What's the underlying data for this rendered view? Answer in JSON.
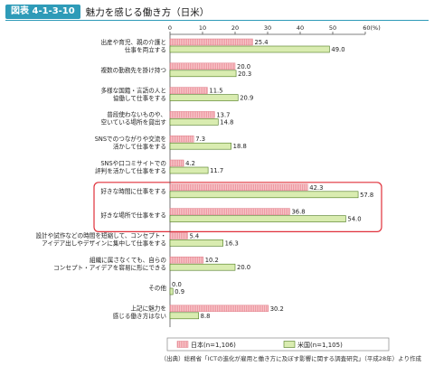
{
  "figure": {
    "number": "図表 4-1-3-10",
    "title": "魅力を感じる働き方（日米）"
  },
  "source_note": "（出典）総務省「ICTの進化が雇用と働き方に及ぼす影響に関する調査研究」（平成28年）より作成",
  "colors": {
    "japan": "#f7c5c8",
    "japan_stroke": "#e07a86",
    "us": "#d9ecb0",
    "us_stroke": "#4d7a1e",
    "highlight": "#e0303a"
  },
  "chart_data": {
    "type": "bar",
    "orientation": "horizontal",
    "unit_label": "(%)",
    "xlim": [
      0,
      60
    ],
    "xticks": [
      0,
      10,
      20,
      30,
      40,
      50,
      60
    ],
    "xtick_labels": [
      "0",
      "10",
      "20",
      "30",
      "40",
      "50",
      "60(%)"
    ],
    "categories": [
      [
        "出産や育児、親の介護と",
        "仕事を両立する"
      ],
      [
        "複数の勤務先を掛け持つ"
      ],
      [
        "多様な国籍・言語の人と",
        "協働して仕事をする"
      ],
      [
        "普段使わないものや、",
        "空いている場所を貸出す"
      ],
      [
        "SNSでのつながりや交流を",
        "活かして仕事をする"
      ],
      [
        "SNSや口コミサイトでの",
        "評判を活かして仕事をする"
      ],
      [
        "好きな時間に仕事をする"
      ],
      [
        "好きな場所で仕事をする"
      ],
      [
        "設計や試作などの時間を短縮して、コンセプト・",
        "アイデア出しやデザインに集中して仕事をする"
      ],
      [
        "組織に属さなくても、自らの",
        "コンセプト・アイデアを容易に形にできる"
      ],
      [
        "その他"
      ],
      [
        "上記に魅力を",
        "感じる働き方はない"
      ]
    ],
    "series": [
      {
        "name": "日本(n=1,106)",
        "values": [
          25.4,
          20.0,
          11.5,
          13.7,
          7.3,
          4.2,
          42.3,
          36.8,
          5.4,
          10.2,
          0.0,
          30.2
        ]
      },
      {
        "name": "米国(n=1,105)",
        "values": [
          49.0,
          20.3,
          20.9,
          14.8,
          18.8,
          11.7,
          57.8,
          54.0,
          16.3,
          20.0,
          0.9,
          8.8
        ]
      }
    ],
    "value_labels": [
      [
        "25.4",
        "20.0",
        "11.5",
        "13.7",
        "7.3",
        "4.2",
        "42.3",
        "36.8",
        "5.4",
        "10.2",
        "0.0",
        "30.2"
      ],
      [
        "49.0",
        "20.3",
        "20.9",
        "14.8",
        "18.8",
        "11.7",
        "57.8",
        "54.0",
        "16.3",
        "20.0",
        "0.9",
        "8.8"
      ]
    ],
    "highlighted_categories": [
      6,
      7
    ],
    "grid": false,
    "legend_position": "bottom-right"
  }
}
